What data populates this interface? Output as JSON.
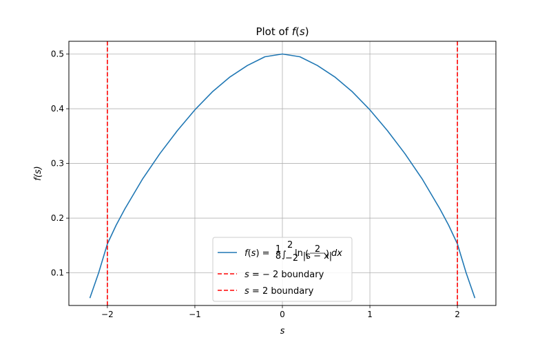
{
  "chart_data": {
    "type": "line",
    "title": "Plot of f(s)",
    "xlabel": "s",
    "ylabel": "f(s)",
    "xlim": [
      -2.44,
      2.44
    ],
    "ylim": [
      0.0404,
      0.5233
    ],
    "grid": true,
    "legend_placement": "bottom-center",
    "x_ticks": [
      -2,
      -1,
      0,
      1,
      2
    ],
    "x_tick_labels": [
      "−2",
      "−1",
      "0",
      "1",
      "2"
    ],
    "y_ticks": [
      0.1,
      0.2,
      0.3,
      0.4,
      0.5
    ],
    "y_tick_labels": [
      "0.1",
      "0.2",
      "0.3",
      "0.4",
      "0.5"
    ],
    "series": [
      {
        "name": "f(s) = 1/8 ∫_{-2}^{2} ln(2/|s−x|) dx",
        "style": "solid",
        "color": "#1f77b4",
        "x": [
          -2.2,
          -2.1,
          -2.0,
          -1.9,
          -1.8,
          -1.6,
          -1.4,
          -1.2,
          -1.0,
          -0.8,
          -0.6,
          -0.4,
          -0.2,
          0.0,
          0.2,
          0.4,
          0.6,
          0.8,
          1.0,
          1.2,
          1.4,
          1.6,
          1.8,
          1.9,
          2.0,
          2.1,
          2.2
        ],
        "y": [
          0.054,
          0.1,
          0.153,
          0.187,
          0.217,
          0.271,
          0.318,
          0.36,
          0.398,
          0.431,
          0.458,
          0.479,
          0.495,
          0.5,
          0.495,
          0.479,
          0.458,
          0.431,
          0.398,
          0.36,
          0.318,
          0.271,
          0.217,
          0.187,
          0.153,
          0.1,
          0.054
        ]
      },
      {
        "name": "s = −2 boundary",
        "style": "dashed",
        "color": "#ff0000",
        "vline": -2
      },
      {
        "name": "s = 2 boundary",
        "style": "dashed",
        "color": "#ff0000",
        "vline": 2
      }
    ],
    "legend": {
      "entries": [
        {
          "prefix": "f(s) = ",
          "frac_num": "1",
          "frac_den": "8",
          "int_low": "−2",
          "int_high": "2",
          "body": "ln",
          "inner_num": "2",
          "inner_den": "|s − x|",
          "suffix": "dx"
        },
        {
          "var": "s",
          "text": " = − 2 boundary"
        },
        {
          "var": "s",
          "text": " = 2 boundary"
        }
      ]
    }
  }
}
